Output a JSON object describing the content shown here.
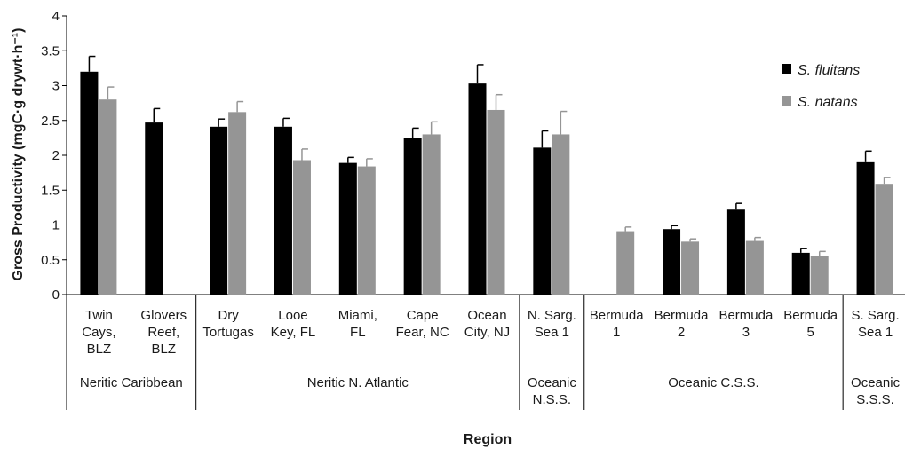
{
  "chart_data": {
    "type": "bar",
    "ylabel": "Gross Productivity (mgC·g drywt·h⁻¹)",
    "xlabel": "Region",
    "ylim": [
      0,
      4
    ],
    "yticks": [
      "0",
      "0.5",
      "1",
      "1.5",
      "2",
      "2.5",
      "3",
      "3.5",
      "4"
    ],
    "legend_position": "top-right",
    "categories": [
      [
        "Twin",
        "Cays,",
        "BLZ"
      ],
      [
        "Glovers",
        "Reef,",
        "BLZ"
      ],
      [
        "Dry",
        "Tortugas"
      ],
      [
        "Looe",
        "Key, FL"
      ],
      [
        "Miami,",
        "FL"
      ],
      [
        "Cape",
        "Fear, NC"
      ],
      [
        "Ocean",
        "City, NJ"
      ],
      [
        "N. Sarg.",
        "Sea 1"
      ],
      [
        "Bermuda",
        "1"
      ],
      [
        "Bermuda",
        "2"
      ],
      [
        "Bermuda",
        "3"
      ],
      [
        "Bermuda",
        "5"
      ],
      [
        "S. Sarg.",
        "Sea 1"
      ]
    ],
    "groups": [
      {
        "label": [
          "Neritic Caribbean"
        ],
        "start": 0,
        "end": 1
      },
      {
        "label": [
          "Neritic N. Atlantic"
        ],
        "start": 2,
        "end": 6
      },
      {
        "label": [
          "Oceanic",
          "N.S.S."
        ],
        "start": 7,
        "end": 7
      },
      {
        "label": [
          "Oceanic C.S.S."
        ],
        "start": 8,
        "end": 11
      },
      {
        "label": [
          "Oceanic",
          "S.S.S."
        ],
        "start": 12,
        "end": 12
      }
    ],
    "series": [
      {
        "name": "S. fluitans",
        "color": "#000000",
        "values": [
          3.2,
          2.47,
          2.41,
          2.41,
          1.89,
          2.25,
          3.03,
          2.11,
          null,
          0.94,
          1.22,
          0.6,
          1.9
        ],
        "errors": [
          0.22,
          0.2,
          0.11,
          0.12,
          0.08,
          0.14,
          0.27,
          0.24,
          null,
          0.05,
          0.09,
          0.06,
          0.16
        ]
      },
      {
        "name": "S. natans",
        "color": "#959595",
        "values": [
          2.8,
          null,
          2.62,
          1.93,
          1.84,
          2.3,
          2.65,
          2.3,
          0.91,
          0.76,
          0.77,
          0.56,
          1.59
        ],
        "errors": [
          0.18,
          null,
          0.15,
          0.16,
          0.11,
          0.18,
          0.22,
          0.33,
          0.06,
          0.04,
          0.05,
          0.06,
          0.09
        ]
      }
    ]
  }
}
